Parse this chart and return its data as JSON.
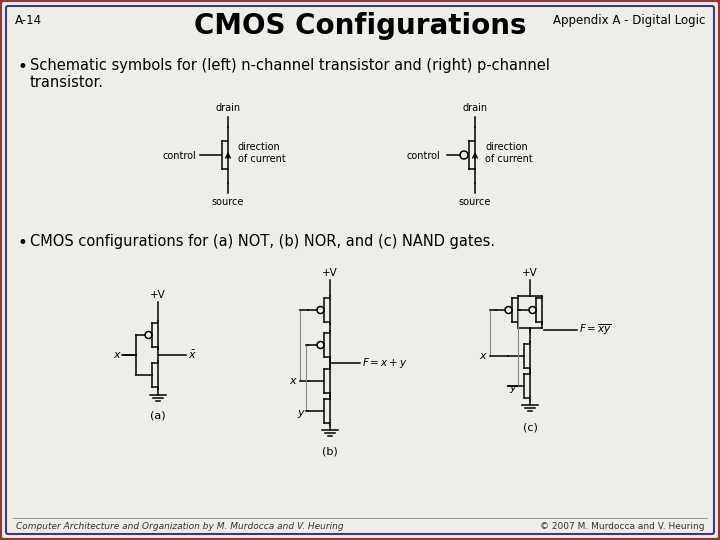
{
  "title": "CMOS Configurations",
  "slide_id": "A-14",
  "slide_header": "Appendix A - Digital Logic",
  "bullet1": "Schematic symbols for (left) n-channel transistor and (right) p-channel\ntransistor.",
  "bullet2": "CMOS configurations for (a) NOT, (b) NOR, and (c) NAND gates.",
  "footer_left": "Computer Architecture and Organization by M. Murdocca and V. Heuring",
  "footer_right": "© 2007 M. Murdocca and V. Heuring",
  "bg_color": "#eeede8",
  "border_color_outer": "#8B3A3A",
  "border_color_inner": "#3a3a7a",
  "text_color": "#000000",
  "title_fontsize": 20,
  "body_fontsize": 10.5,
  "circuit_color": "#000000"
}
